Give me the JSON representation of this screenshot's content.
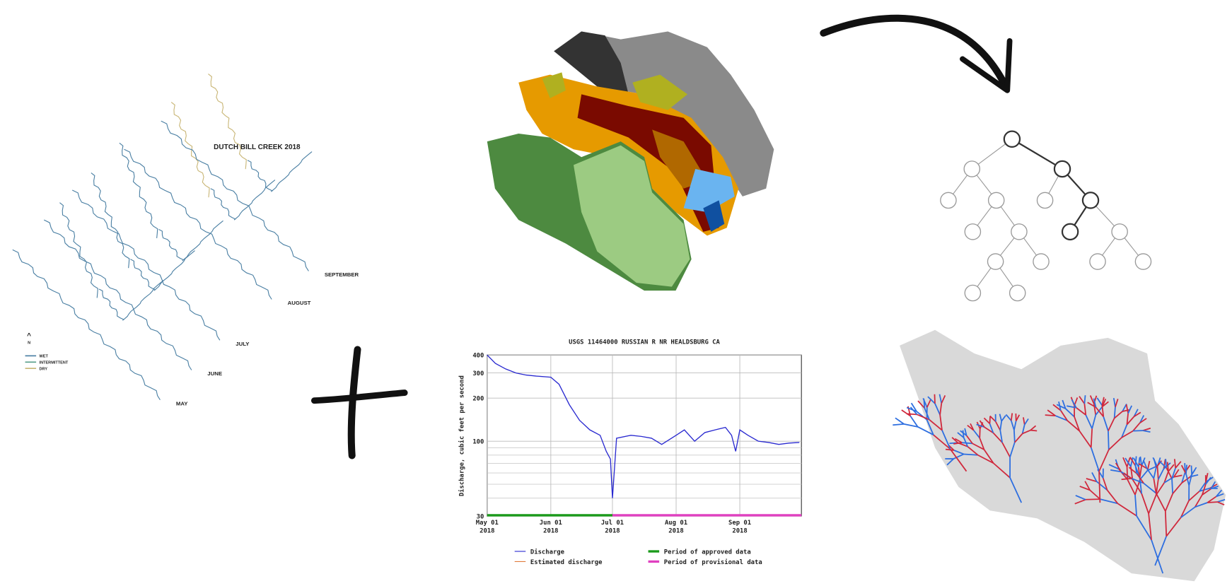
{
  "stream_map": {
    "title": "DUTCH BILL CREEK 2018",
    "months": [
      "MAY",
      "JUNE",
      "JULY",
      "AUGUST",
      "SEPTEMBER"
    ],
    "north": "N",
    "legend": [
      {
        "name": "WET",
        "color": "#4a7fa3"
      },
      {
        "name": "INTERMITTENT",
        "color": "#5aa08c"
      },
      {
        "name": "DRY",
        "color": "#c9b676"
      }
    ]
  },
  "chart_data": {
    "type": "line",
    "title": "USGS 11464000 RUSSIAN R NR HEALDSBURG CA",
    "y_label": "Discharge, cubic feet per second",
    "log_y": true,
    "grid": true,
    "x": [
      "2018-05-01",
      "2018-05-05",
      "2018-05-10",
      "2018-05-15",
      "2018-05-20",
      "2018-05-25",
      "2018-06-01",
      "2018-06-05",
      "2018-06-10",
      "2018-06-15",
      "2018-06-20",
      "2018-06-25",
      "2018-06-28",
      "2018-06-30",
      "2018-07-01",
      "2018-07-03",
      "2018-07-10",
      "2018-07-15",
      "2018-07-20",
      "2018-07-25",
      "2018-08-01",
      "2018-08-05",
      "2018-08-10",
      "2018-08-15",
      "2018-08-20",
      "2018-08-25",
      "2018-08-28",
      "2018-08-30",
      "2018-09-01",
      "2018-09-05",
      "2018-09-10",
      "2018-09-15",
      "2018-09-20",
      "2018-09-25",
      "2018-09-30"
    ],
    "series": [
      {
        "name": "Discharge",
        "color": "#2a2ad0",
        "values": [
          400,
          350,
          320,
          300,
          290,
          285,
          280,
          250,
          180,
          140,
          120,
          110,
          85,
          75,
          40,
          105,
          110,
          108,
          105,
          95,
          110,
          120,
          100,
          115,
          120,
          125,
          110,
          85,
          120,
          110,
          100,
          98,
          95,
          97,
          98
        ]
      }
    ],
    "legend_extra": [
      {
        "name": "Estimated discharge",
        "color": "#e07a3a"
      }
    ],
    "periods": [
      {
        "name": "Period of approved data",
        "color": "#1a9a1a",
        "start": "2018-05-01",
        "end": "2018-07-01"
      },
      {
        "name": "Period of provisional data",
        "color": "#e040c0",
        "start": "2018-07-01",
        "end": "2018-10-01"
      }
    ],
    "xlim": [
      "2018-05-01",
      "2018-10-01"
    ],
    "xticks": [
      {
        "value": "2018-05-01",
        "label": "May 01\n2018"
      },
      {
        "value": "2018-06-01",
        "label": "Jun 01\n2018"
      },
      {
        "value": "2018-07-01",
        "label": "Jul 01\n2018"
      },
      {
        "value": "2018-08-01",
        "label": "Aug 01\n2018"
      },
      {
        "value": "2018-09-01",
        "label": "Sep 01\n2018"
      }
    ],
    "ylim": [
      30,
      400
    ],
    "yticks": [
      30,
      100,
      200,
      300,
      400
    ],
    "minor_yticks": [
      40,
      50,
      60,
      70,
      80,
      90
    ]
  }
}
